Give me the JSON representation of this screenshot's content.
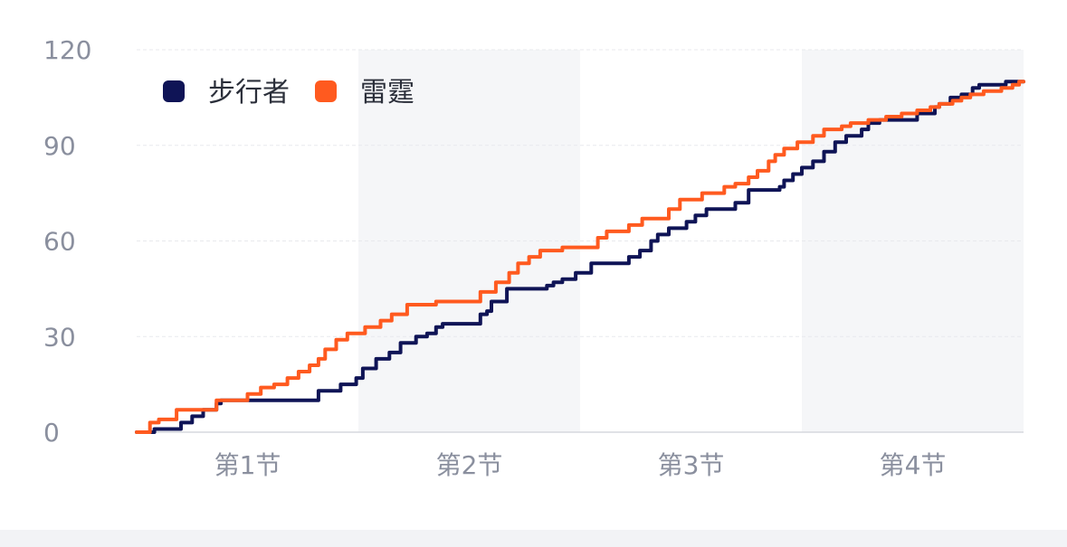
{
  "chart_data": {
    "type": "line",
    "step": true,
    "xlabel": "",
    "ylabel": "",
    "ylim": [
      0,
      120
    ],
    "yticks": [
      0,
      30,
      60,
      90,
      120
    ],
    "xlim": [
      0,
      4
    ],
    "categories": [
      "第1节",
      "第2节",
      "第3节",
      "第4节"
    ],
    "grid": true,
    "legend": "top-left",
    "series": [
      {
        "name": "步行者",
        "color": "#0f1456",
        "x": [
          0.0,
          0.08,
          0.2,
          0.25,
          0.3,
          0.36,
          0.38,
          0.7,
          0.82,
          0.92,
          0.99,
          1.02,
          1.08,
          1.14,
          1.19,
          1.26,
          1.31,
          1.35,
          1.38,
          1.55,
          1.58,
          1.6,
          1.67,
          1.83,
          1.85,
          1.88,
          1.92,
          1.98,
          2.05,
          2.1,
          2.22,
          2.27,
          2.32,
          2.35,
          2.4,
          2.45,
          2.48,
          2.52,
          2.57,
          2.7,
          2.76,
          2.86,
          2.9,
          2.92,
          2.96,
          3.0,
          3.05,
          3.1,
          3.15,
          3.2,
          3.27,
          3.3,
          3.35,
          3.45,
          3.52,
          3.6,
          3.62,
          3.67,
          3.72,
          3.77,
          3.8,
          3.85,
          3.92,
          3.95,
          3.98,
          4.0
        ],
        "y": [
          0,
          1,
          3,
          5,
          7,
          9,
          10,
          10,
          13,
          15,
          17,
          20,
          23,
          25,
          28,
          30,
          31,
          33,
          34,
          37,
          38,
          41,
          45,
          45,
          46,
          47,
          48,
          50,
          53,
          53,
          55,
          57,
          60,
          62,
          64,
          64,
          66,
          68,
          70,
          72,
          76,
          76,
          77,
          79,
          81,
          83,
          85,
          88,
          91,
          93,
          95,
          97,
          98,
          98,
          100,
          102,
          103,
          105,
          106,
          108,
          109,
          109,
          110,
          110,
          110,
          110
        ]
      },
      {
        "name": "雷霆",
        "color": "#ff5a1f",
        "x": [
          0.0,
          0.06,
          0.1,
          0.18,
          0.36,
          0.5,
          0.56,
          0.62,
          0.68,
          0.73,
          0.78,
          0.82,
          0.85,
          0.9,
          0.95,
          1.03,
          1.1,
          1.15,
          1.22,
          1.35,
          1.55,
          1.62,
          1.68,
          1.72,
          1.77,
          1.82,
          1.92,
          2.08,
          2.12,
          2.22,
          2.28,
          2.4,
          2.45,
          2.55,
          2.65,
          2.7,
          2.76,
          2.8,
          2.85,
          2.88,
          2.92,
          2.98,
          3.05,
          3.1,
          3.18,
          3.22,
          3.3,
          3.38,
          3.45,
          3.52,
          3.58,
          3.62,
          3.68,
          3.72,
          3.76,
          3.82,
          3.9,
          3.95,
          3.98,
          4.0
        ],
        "y": [
          0,
          3,
          4,
          7,
          10,
          12,
          14,
          15,
          17,
          19,
          21,
          23,
          26,
          29,
          31,
          33,
          35,
          37,
          40,
          41,
          44,
          47,
          50,
          53,
          55,
          57,
          58,
          61,
          63,
          65,
          67,
          70,
          73,
          75,
          77,
          78,
          80,
          82,
          85,
          87,
          89,
          91,
          93,
          95,
          96,
          97,
          98,
          99,
          100,
          101,
          102,
          103,
          104,
          105,
          106,
          107,
          108,
          109,
          110,
          110
        ]
      }
    ]
  }
}
